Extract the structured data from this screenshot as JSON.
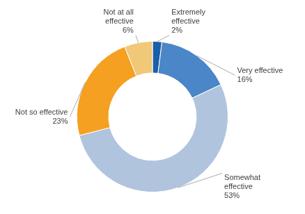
{
  "chart_data": {
    "type": "doughnut",
    "categories": [
      "Extremely\neffective",
      "Very effective",
      "Somewhat\neffective",
      "Not so effective",
      "Not at all\neffective"
    ],
    "values": [
      2,
      16,
      53,
      23,
      6
    ],
    "value_labels": [
      "2%",
      "16%",
      "53%",
      "23%",
      "6%"
    ],
    "colors": [
      "#1a5fa8",
      "#4a86c8",
      "#b0c4de",
      "#f5a020",
      "#f0c878"
    ],
    "data_labels": true
  }
}
